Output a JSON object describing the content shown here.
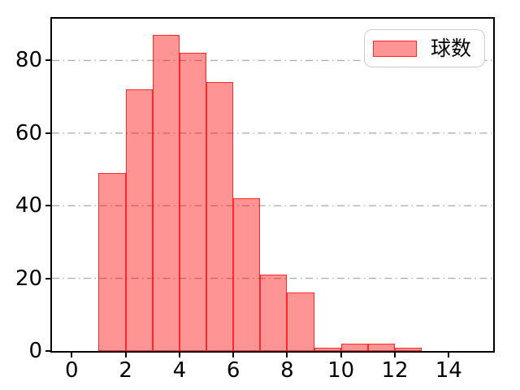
{
  "figure": {
    "background_color": "#ffffff",
    "spine_color": "#000000",
    "tick_color": "#000000"
  },
  "legend": {
    "items": [
      {
        "label": "球数",
        "swatch_fill": "#ff9999",
        "swatch_edge": "#ff4444"
      }
    ],
    "position": "upper right",
    "border_color": "#cccccc"
  },
  "axes": {
    "x_tick_labels": [
      "0",
      "2",
      "4",
      "6",
      "8",
      "10",
      "12",
      "14"
    ],
    "y_tick_labels": [
      "0",
      "20",
      "40",
      "60",
      "80"
    ]
  },
  "chart_data": {
    "type": "bar",
    "subtype": "histogram",
    "title": "",
    "xlabel": "",
    "ylabel": "",
    "bin_width": 1,
    "bin_edges": [
      1,
      2,
      3,
      4,
      5,
      6,
      7,
      8,
      9,
      10,
      11,
      12,
      13
    ],
    "series": [
      {
        "name": "球数",
        "values": [
          49,
          72,
          87,
          82,
          74,
          42,
          21,
          16,
          1,
          2,
          2,
          1
        ]
      }
    ],
    "x_ticks": [
      0,
      2,
      4,
      6,
      8,
      10,
      12,
      14
    ],
    "y_ticks": [
      0,
      20,
      40,
      60,
      80
    ],
    "xlim": [
      -0.733,
      15.65
    ],
    "ylim": [
      0,
      91.5
    ],
    "grid": {
      "axis": "y",
      "linestyle": "dash-dot",
      "color": "#b0b0b0",
      "on": true
    },
    "legend_position": "upper right",
    "bar_fill_rgba": "rgba(255,0,0,0.42)",
    "bar_edge_rgba": "rgba(255,0,0,0.72)"
  }
}
